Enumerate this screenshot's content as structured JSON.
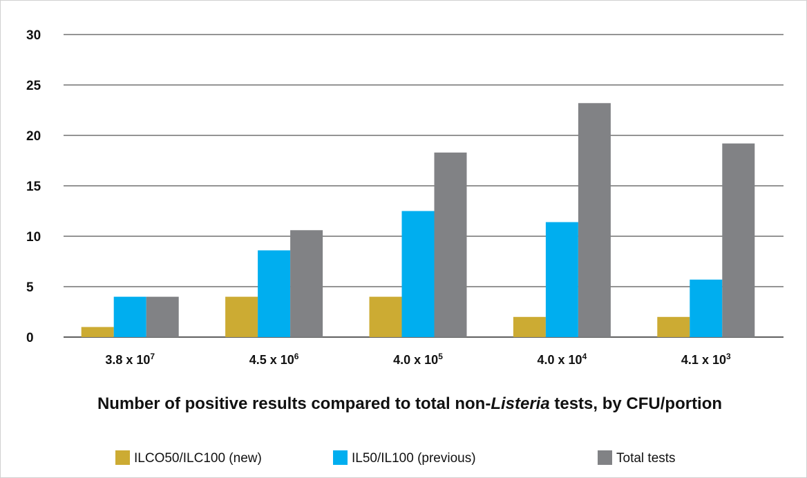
{
  "chart_data": {
    "type": "bar",
    "title_parts": {
      "before": "Number of positive results compared to total non-",
      "italic": "Listeria",
      "after": " tests, by CFU/portion"
    },
    "categories": [
      {
        "base": "3.8 x 10",
        "exp": "7"
      },
      {
        "base": "4.5 x 10",
        "exp": "6"
      },
      {
        "base": "4.0 x 10",
        "exp": "5"
      },
      {
        "base": "4.0 x 10",
        "exp": "4"
      },
      {
        "base": "4.1 x 10",
        "exp": "3"
      }
    ],
    "series": [
      {
        "name": "ILCO50/ILC100 (new)",
        "color": "#ccab33",
        "values": [
          1,
          4,
          4,
          2,
          2
        ]
      },
      {
        "name": "IL50/IL100 (previous)",
        "color": "#00aeef",
        "values": [
          4,
          8.6,
          12.5,
          11.4,
          5.7
        ]
      },
      {
        "name": "Total tests",
        "color": "#818285",
        "values": [
          4,
          10.6,
          18.3,
          23.2,
          19.2
        ]
      }
    ],
    "ylim": [
      0,
      30
    ],
    "yticks": [
      0,
      5,
      10,
      15,
      20,
      25,
      30
    ],
    "grid": true,
    "legend_position": "bottom"
  }
}
